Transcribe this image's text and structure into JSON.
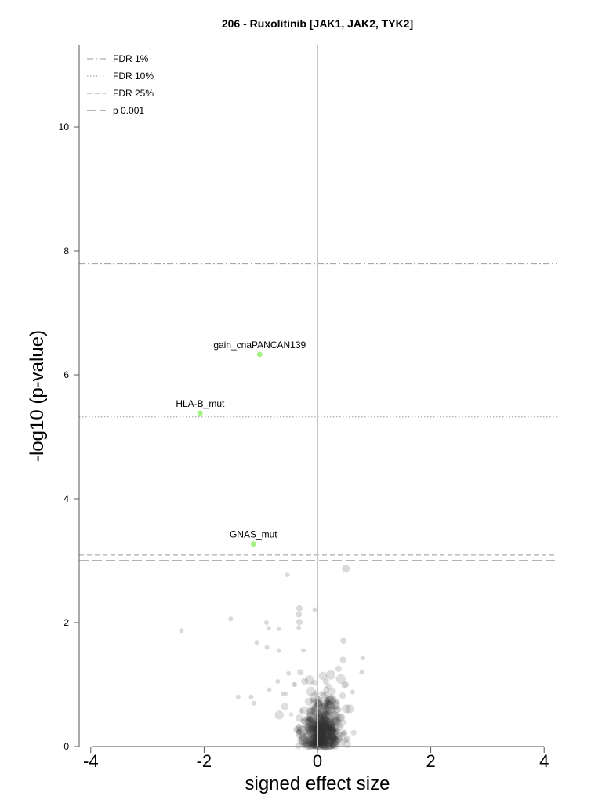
{
  "chart_data": {
    "type": "scatter",
    "title": "206 - Ruxolitinib [JAK1, JAK2, TYK2]",
    "xlabel": "signed effect size",
    "ylabel": "-log10 (p-value)",
    "xlim": [
      -4.2,
      4.2
    ],
    "ylim": [
      0,
      11.2
    ],
    "xticks": [
      -4,
      -2,
      0,
      2,
      4
    ],
    "yticks": [
      0,
      2,
      4,
      6,
      8,
      10
    ],
    "zero_line_x": 0,
    "thresholds": [
      {
        "name": "FDR 1%",
        "y": 7.79,
        "style": "dashdot",
        "color": "#9a9a9a"
      },
      {
        "name": "FDR 10%",
        "y": 5.32,
        "style": "dotted",
        "color": "#9a9a9a"
      },
      {
        "name": "FDR 25%",
        "y": 3.09,
        "style": "dashed",
        "color": "#9a9a9a"
      },
      {
        "name": "p 0.001",
        "y": 3.0,
        "style": "longdash",
        "color": "#9a9a9a"
      }
    ],
    "legend_position": "top-left",
    "highlight_color": "#a4f084",
    "background_color": "#333333",
    "highlighted_points": [
      {
        "label": "gain_cnaPANCAN139",
        "x": -1.02,
        "y": 6.33
      },
      {
        "label": "HLA-B_mut",
        "x": -2.07,
        "y": 5.38
      },
      {
        "label": "GNAS_mut",
        "x": -1.13,
        "y": 3.27
      }
    ],
    "background_points": [
      {
        "x": 0.5,
        "y": 2.87,
        "r": 5
      },
      {
        "x": -0.53,
        "y": 2.77,
        "r": 3
      },
      {
        "x": -0.32,
        "y": 2.23,
        "r": 4
      },
      {
        "x": -0.05,
        "y": 2.21,
        "r": 3
      },
      {
        "x": -0.33,
        "y": 2.13,
        "r": 4
      },
      {
        "x": -0.32,
        "y": 2.01,
        "r": 4
      },
      {
        "x": -1.53,
        "y": 2.06,
        "r": 3
      },
      {
        "x": -2.4,
        "y": 1.87,
        "r": 3
      },
      {
        "x": -0.9,
        "y": 2.0,
        "r": 3
      },
      {
        "x": -0.86,
        "y": 1.91,
        "r": 3
      },
      {
        "x": -0.68,
        "y": 1.9,
        "r": 3
      },
      {
        "x": -0.33,
        "y": 1.92,
        "r": 3
      },
      {
        "x": -1.07,
        "y": 1.68,
        "r": 3
      },
      {
        "x": -0.68,
        "y": 1.55,
        "r": 3
      },
      {
        "x": -0.89,
        "y": 1.6,
        "r": 3
      },
      {
        "x": 0.46,
        "y": 1.71,
        "r": 4
      },
      {
        "x": -0.25,
        "y": 1.55,
        "r": 3
      },
      {
        "x": 0.45,
        "y": 1.4,
        "r": 4
      },
      {
        "x": 0.8,
        "y": 1.43,
        "r": 3
      },
      {
        "x": -0.51,
        "y": 1.18,
        "r": 3
      },
      {
        "x": -0.3,
        "y": 1.2,
        "r": 4
      },
      {
        "x": -0.7,
        "y": 1.05,
        "r": 3
      },
      {
        "x": -0.85,
        "y": 0.92,
        "r": 3
      },
      {
        "x": -1.17,
        "y": 0.8,
        "r": 3
      },
      {
        "x": -1.4,
        "y": 0.8,
        "r": 3
      },
      {
        "x": -1.12,
        "y": 0.7,
        "r": 3
      },
      {
        "x": -0.6,
        "y": 0.85,
        "r": 3
      },
      {
        "x": 0.62,
        "y": 0.88,
        "r": 3
      },
      {
        "x": 0.78,
        "y": 1.2,
        "r": 3
      },
      {
        "x": 0.5,
        "y": 1.0,
        "r": 4
      },
      {
        "x": -0.4,
        "y": 1.0,
        "r": 3
      },
      {
        "x": 0.15,
        "y": 1.05,
        "r": 4
      }
    ]
  }
}
